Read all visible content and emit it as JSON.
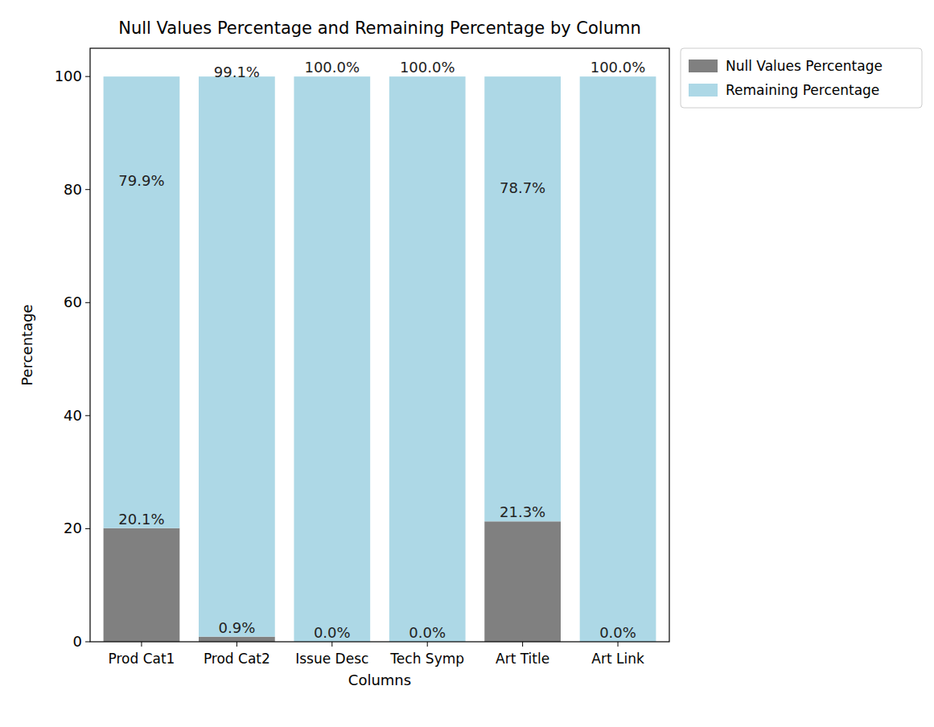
{
  "chart_data": {
    "type": "bar",
    "title": "Null Values Percentage and Remaining Percentage by Column",
    "x_label": "Columns",
    "y_label": "Percentage",
    "categories": [
      "Prod Cat1",
      "Prod Cat2",
      "Issue Desc",
      "Tech Symp",
      "Art Title",
      "Art Link"
    ],
    "series": [
      {
        "name": "Null Values Percentage",
        "color": "#808080",
        "values": [
          20.1,
          0.9,
          0.0,
          0.0,
          21.3,
          0.0
        ],
        "value_labels": [
          "20.1%",
          "0.9%",
          "0.0%",
          "0.0%",
          "21.3%",
          "0.0%"
        ]
      },
      {
        "name": "Remaining Percentage",
        "color": "#add8e6",
        "values": [
          79.9,
          99.1,
          100.0,
          100.0,
          78.7,
          100.0
        ],
        "value_labels": [
          "79.9%",
          "99.1%",
          "100.0%",
          "100.0%",
          "78.7%",
          "100.0%"
        ]
      }
    ],
    "stacked": true,
    "data_labels": true,
    "legend": "upper right",
    "grid": false,
    "ylim": [
      0,
      105
    ],
    "yticks": [
      0,
      20,
      40,
      60,
      80,
      100
    ]
  }
}
